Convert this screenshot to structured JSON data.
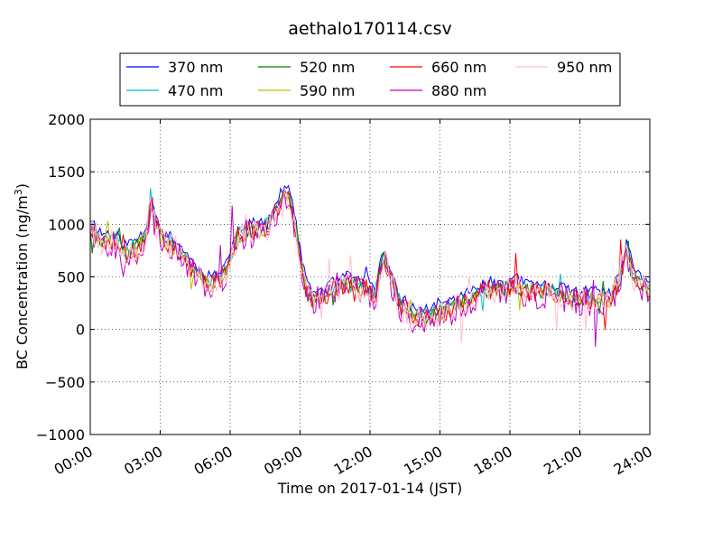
{
  "chart_data": {
    "type": "line",
    "title": "aethalo170114.csv",
    "xlabel": "Time on 2017-01-14 (JST)",
    "ylabel_main": "BC Concentration (ng/m",
    "ylabel_sup": "3",
    "ylabel_end": ")",
    "xlim": [
      0,
      24
    ],
    "ylim": [
      -1000,
      2000
    ],
    "grid": true,
    "legend_position": "top",
    "x_ticks": [
      0,
      3,
      6,
      9,
      12,
      15,
      18,
      21,
      24
    ],
    "x_tick_labels": [
      "00:00",
      "03:00",
      "06:00",
      "09:00",
      "12:00",
      "15:00",
      "18:00",
      "21:00",
      "24:00"
    ],
    "y_ticks": [
      -1000,
      -500,
      0,
      500,
      1000,
      1500,
      2000
    ],
    "y_tick_labels": [
      "−1000",
      "−500",
      "0",
      "500",
      "1000",
      "1500",
      "2000"
    ],
    "anchors_x": [
      0,
      0.5,
      1,
      1.5,
      2,
      2.4,
      2.6,
      2.8,
      3.2,
      3.6,
      4,
      4.5,
      5,
      5.5,
      6,
      6.3,
      6.8,
      7.2,
      7.6,
      7.9,
      8.2,
      8.5,
      8.8,
      9.0,
      9.3,
      9.6,
      10,
      10.5,
      11,
      11.5,
      11.9,
      12.2,
      12.6,
      12.9,
      13.3,
      13.8,
      14.3,
      14.8,
      15.3,
      15.8,
      16.3,
      16.7,
      17.2,
      17.8,
      18.3,
      18.8,
      19.3,
      19.8,
      20.3,
      20.8,
      21.3,
      21.8,
      22.3,
      22.7,
      23.0,
      23.3,
      23.6,
      24
    ],
    "anchors_y": [
      1000,
      850,
      870,
      750,
      800,
      900,
      1250,
      1000,
      850,
      800,
      700,
      550,
      450,
      480,
      650,
      900,
      950,
      950,
      1000,
      1100,
      1250,
      1300,
      1000,
      700,
      350,
      300,
      330,
      400,
      450,
      420,
      400,
      350,
      700,
      500,
      250,
      150,
      130,
      160,
      200,
      250,
      300,
      350,
      400,
      400,
      420,
      380,
      370,
      360,
      330,
      300,
      310,
      300,
      280,
      450,
      800,
      500,
      450,
      400
    ],
    "series": [
      {
        "name": "370 nm",
        "color": "#0000ff",
        "offset": 60,
        "noise": 50,
        "seed": 11
      },
      {
        "name": "470 nm",
        "color": "#00bfbf",
        "offset": 10,
        "noise": 60,
        "seed": 23
      },
      {
        "name": "520 nm",
        "color": "#008000",
        "offset": -10,
        "noise": 70,
        "seed": 37
      },
      {
        "name": "590 nm",
        "color": "#bfbf00",
        "offset": -20,
        "noise": 80,
        "seed": 41
      },
      {
        "name": "660 nm",
        "color": "#ff0000",
        "offset": -15,
        "noise": 100,
        "seed": 53
      },
      {
        "name": "880 nm",
        "color": "#bf00bf",
        "offset": -40,
        "noise": 140,
        "seed": 67
      },
      {
        "name": "950 nm",
        "color": "#ffc0cb",
        "offset": -30,
        "noise": 130,
        "seed": 79
      }
    ]
  }
}
